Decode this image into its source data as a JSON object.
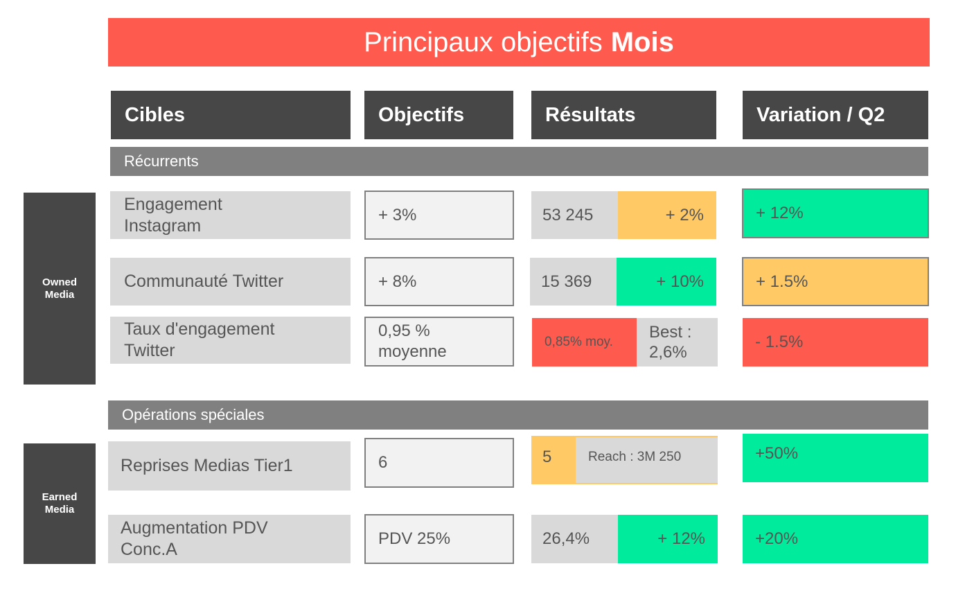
{
  "title": {
    "prefix": "Principaux objectifs",
    "strong": "Mois"
  },
  "headers": {
    "targets": "Cibles",
    "objectives": "Objectifs",
    "results": "Résultats",
    "variation": "Variation / Q2"
  },
  "sections": {
    "recurring": "Récurrents",
    "special": "Opérations spéciales"
  },
  "side_labels": {
    "owned_line1": "Owned",
    "owned_line2": "Media",
    "earned_line1": "Earned",
    "earned_line2": "Media"
  },
  "rows": [
    {
      "target_line1": "Engagement",
      "target_line2": "Instagram",
      "objective": "+ 3%",
      "result_value": "53 245",
      "result_delta": "+ 2%",
      "variation": "+ 12%"
    },
    {
      "target_line1": "Communauté Twitter",
      "objective": "+ 8%",
      "result_value": "15 369",
      "result_delta": "+ 10%",
      "variation": "+ 1.5%"
    },
    {
      "target_line1": "Taux d'engagement",
      "target_line2": "Twitter",
      "objective_line1": "0,95 %",
      "objective_line2": "moyenne",
      "result_value": "0,85% moy.",
      "result_best_line1": "Best :",
      "result_best_line2": "2,6%",
      "variation": "- 1.5%"
    },
    {
      "target_line1": "Reprises Medias Tier1",
      "objective": "6",
      "result_value": "5",
      "result_reach": "Reach : 3M 250",
      "variation": "+50%"
    },
    {
      "target_line1": "Augmentation PDV",
      "target_line2": "Conc.A",
      "objective": "PDV 25%",
      "result_value": "26,4%",
      "result_delta": "+ 12%",
      "variation": "+20%"
    }
  ],
  "colors": {
    "title_red": "#ff5a4e",
    "header_dark": "#474747",
    "section_grey": "#808080",
    "cell_grey": "#d9d9d9",
    "positive_green": "#00eb9b",
    "neutral_yellow": "#ffc966",
    "negative_red": "#ff5a4e"
  }
}
